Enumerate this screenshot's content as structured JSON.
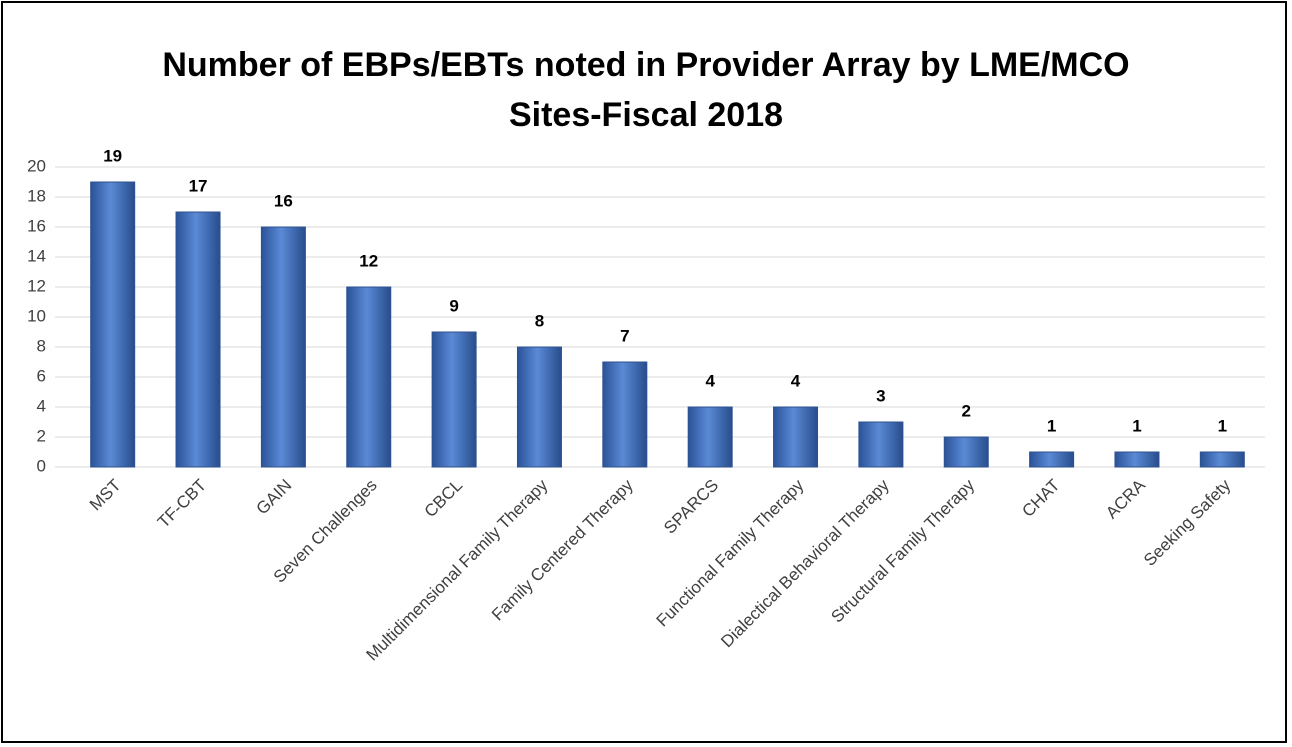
{
  "chart_data": {
    "type": "bar",
    "title": "Number of EBPs/EBTs noted in Provider Array by LME/MCO Sites-Fiscal 2018",
    "categories": [
      "MST",
      "TF-CBT",
      "GAIN",
      "Seven Challenges",
      "CBCL",
      "Multidimensional Family Therapy",
      "Family Centered Therapy",
      "SPARCS",
      "Functional Family Therapy",
      "Dialectical Behavioral Therapy",
      "Structural Family Therapy",
      "CHAT",
      "ACRA",
      "Seeking Safety"
    ],
    "values": [
      19,
      17,
      16,
      12,
      9,
      8,
      7,
      4,
      4,
      3,
      2,
      1,
      1,
      1
    ],
    "color": "#4472c4",
    "ylim": [
      0,
      20
    ],
    "yticks": [
      0,
      2,
      4,
      6,
      8,
      10,
      12,
      14,
      16,
      18,
      20
    ],
    "grid": true
  }
}
